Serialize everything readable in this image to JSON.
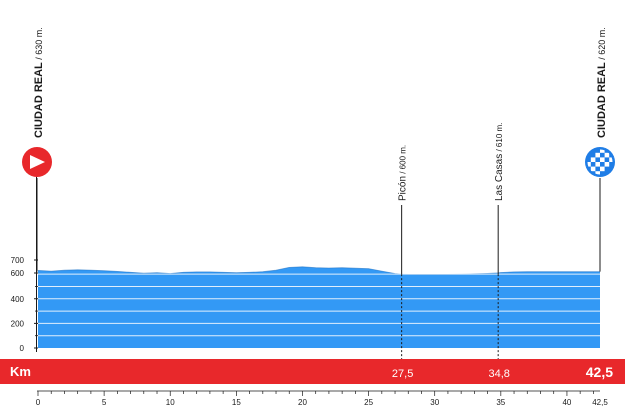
{
  "chart_data": {
    "type": "area",
    "xlabel": "Km",
    "x_range": [
      0,
      42.5
    ],
    "y_range": [
      0,
      700
    ],
    "y_ticks": [
      "0",
      "200",
      "400",
      "600",
      "700"
    ],
    "x_ticks": [
      {
        "value": 0,
        "label": "0"
      },
      {
        "value": 5,
        "label": "5"
      },
      {
        "value": 10,
        "label": "10"
      },
      {
        "value": 15,
        "label": "15"
      },
      {
        "value": 20,
        "label": "20"
      },
      {
        "value": 25,
        "label": "25"
      },
      {
        "value": 30,
        "label": "30"
      },
      {
        "value": 35,
        "label": "35"
      },
      {
        "value": 40,
        "label": "40"
      },
      {
        "value": 42.5,
        "label": "42,5"
      }
    ],
    "profile": {
      "x": [
        0,
        1,
        2,
        3,
        4,
        5,
        6,
        7,
        8,
        9,
        10,
        11,
        12,
        13,
        14,
        15,
        16,
        17,
        18,
        19,
        20,
        21,
        22,
        23,
        24,
        25,
        26,
        27,
        27.5,
        28,
        29,
        30,
        31,
        32,
        33,
        34,
        34.8,
        35,
        36,
        37,
        38,
        39,
        40,
        41,
        42,
        42.5
      ],
      "y": [
        630,
        625,
        632,
        635,
        633,
        628,
        622,
        615,
        608,
        612,
        605,
        615,
        618,
        618,
        615,
        612,
        615,
        620,
        632,
        655,
        660,
        652,
        650,
        652,
        648,
        645,
        625,
        605,
        600,
        598,
        597,
        597,
        598,
        600,
        603,
        606,
        610,
        613,
        618,
        620,
        620,
        620,
        620,
        620,
        620,
        620
      ]
    },
    "waypoints": [
      {
        "km": 0,
        "label": "CIUDAD REAL",
        "altitude": "630 m.",
        "kind": "start"
      },
      {
        "km": 27.5,
        "label": "Picón",
        "altitude": "600 m.",
        "km_label": "27,5",
        "kind": "point"
      },
      {
        "km": 34.8,
        "label": "Las Casas",
        "altitude": "610 m.",
        "km_label": "34,8",
        "kind": "point"
      },
      {
        "km": 42.5,
        "label": "CIUDAD REAL",
        "altitude": "620 m.",
        "km_label": "42,5",
        "kind": "finish"
      }
    ],
    "colors": {
      "profile_fill": "#3399f5",
      "profile_line": "#1e6fc2",
      "band": "#e8282b",
      "band_text": "#ffffff",
      "start_marker": "#e8282b",
      "finish_marker": "#1f7de6"
    }
  }
}
